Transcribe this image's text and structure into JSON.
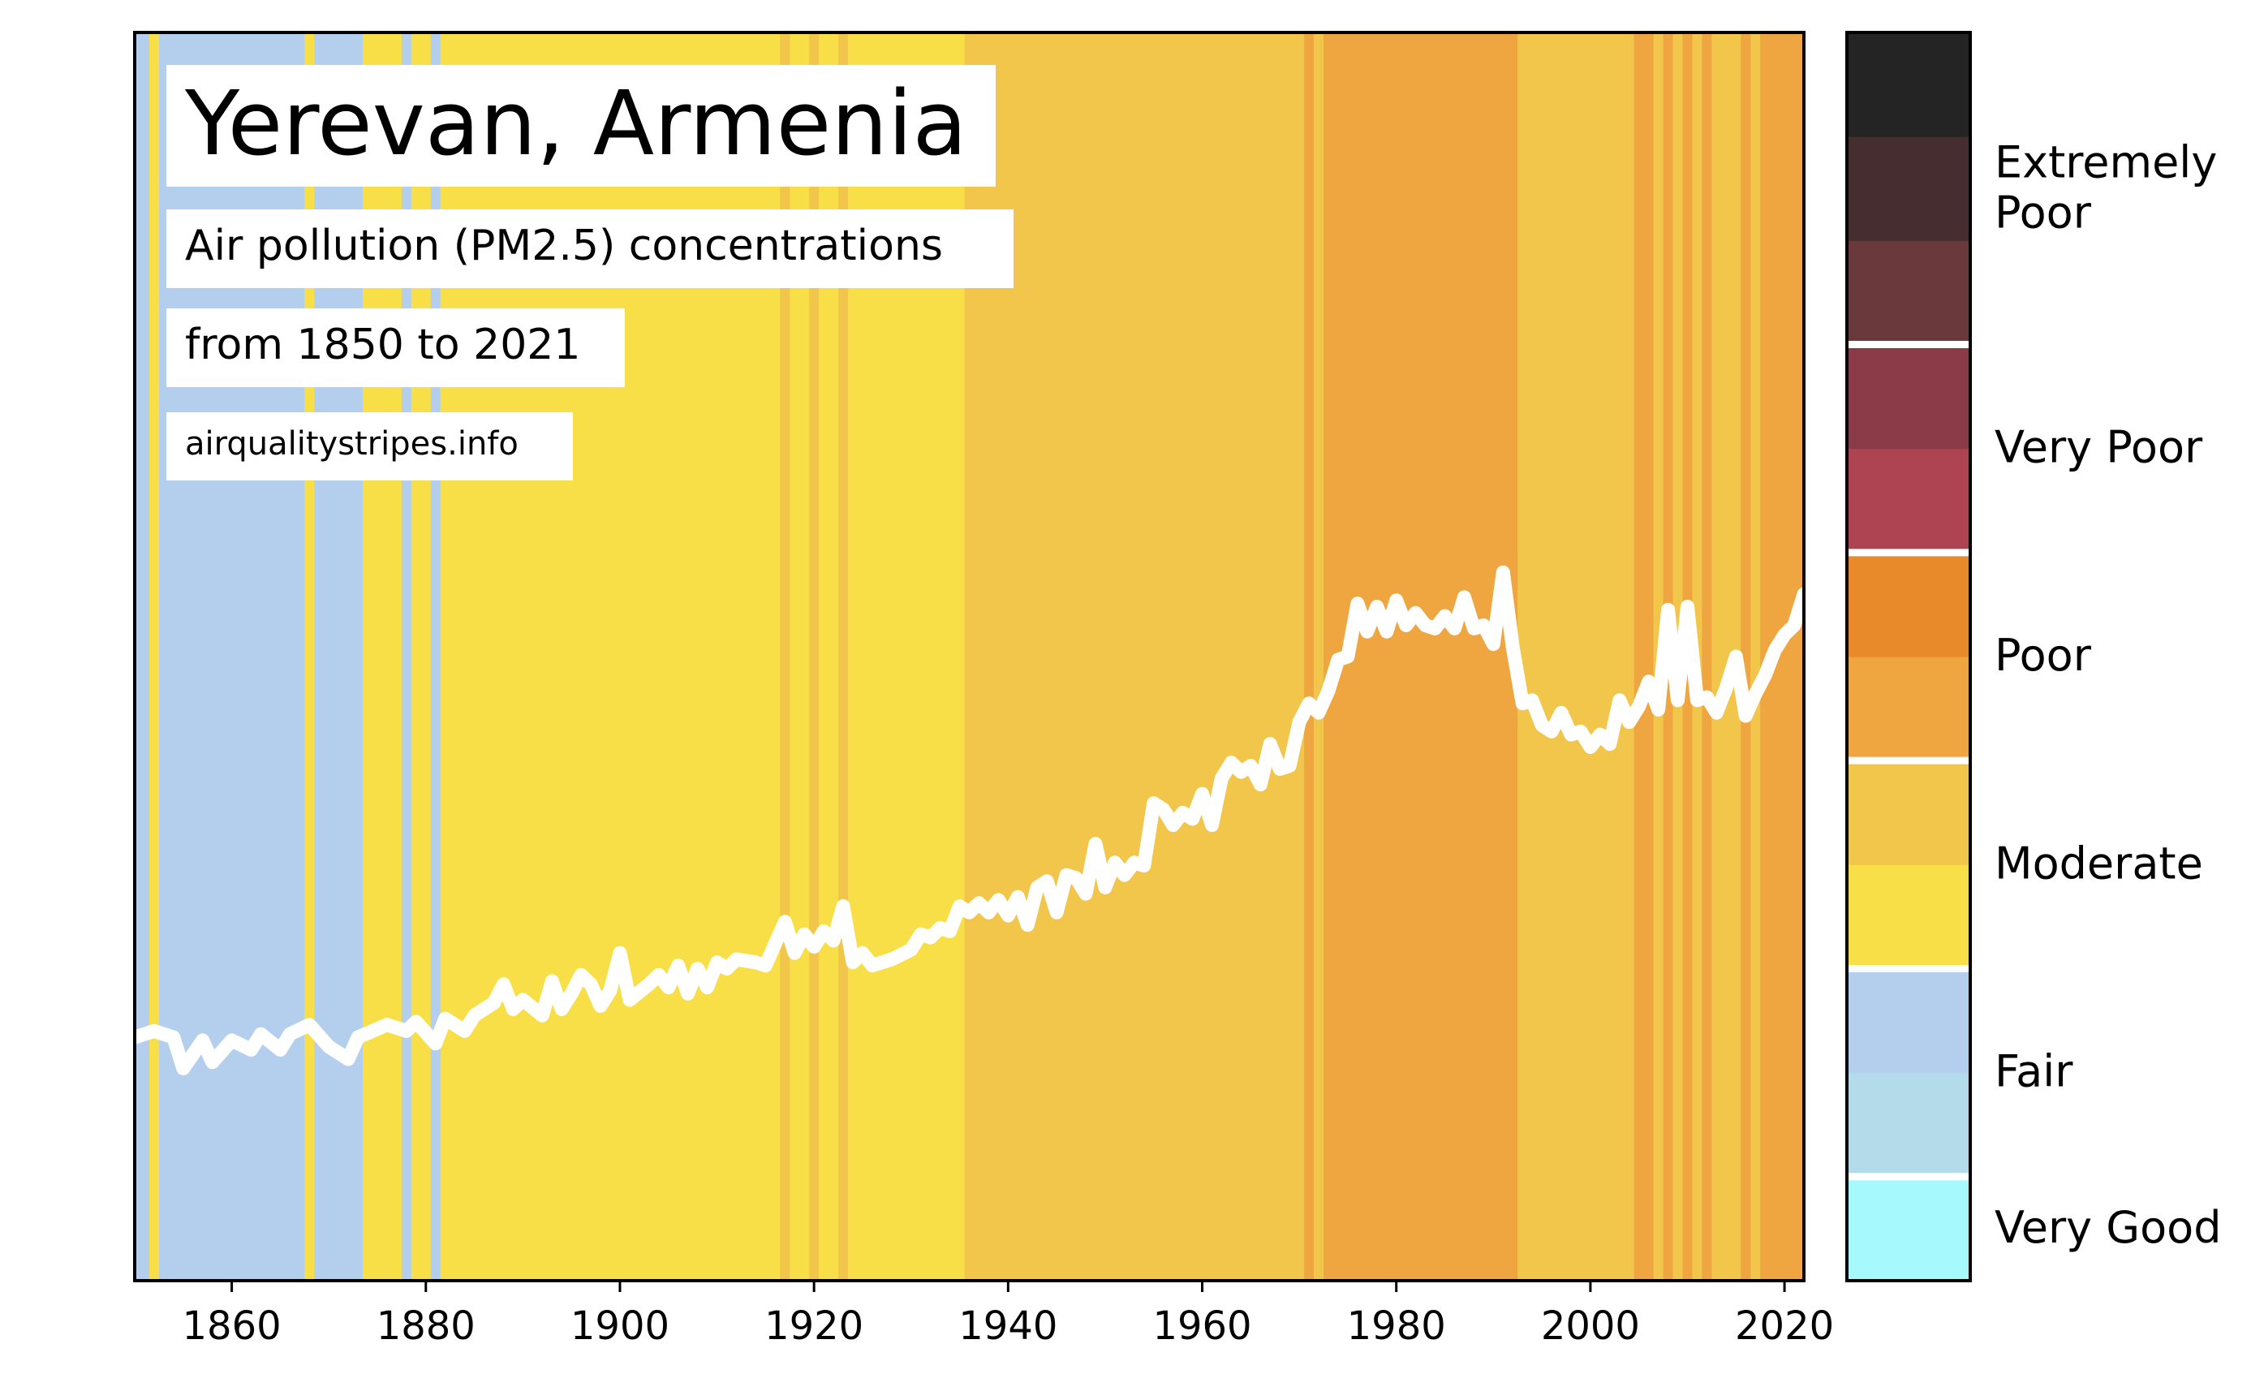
{
  "chart_data": {
    "type": "area",
    "title": "Yerevan, Armenia",
    "subtitle": "Air pollution (PM2.5) concentrations",
    "subtitle2": "from 1850 to 2021",
    "source": "airqualitystripes.info",
    "xlim": [
      1850,
      2022
    ],
    "xticks": [
      1860,
      1880,
      1900,
      1920,
      1940,
      1960,
      1980,
      2000,
      2020
    ],
    "grid": false,
    "colors": {
      "fair": "#b3cfed",
      "moderate_low": "#f8df48",
      "moderate_high": "#f1c64a",
      "poor_low": "#f0a640",
      "line": "#ffffff"
    },
    "stripes": [
      {
        "from": 1850,
        "to": 1851.5,
        "category": "fair"
      },
      {
        "from": 1851.5,
        "to": 1852.5,
        "category": "moderate_low"
      },
      {
        "from": 1852.5,
        "to": 1867.5,
        "category": "fair"
      },
      {
        "from": 1867.5,
        "to": 1868.5,
        "category": "moderate_low"
      },
      {
        "from": 1868.5,
        "to": 1873.5,
        "category": "fair"
      },
      {
        "from": 1873.5,
        "to": 1877.5,
        "category": "moderate_low"
      },
      {
        "from": 1877.5,
        "to": 1878.5,
        "category": "fair"
      },
      {
        "from": 1878.5,
        "to": 1880.5,
        "category": "moderate_low"
      },
      {
        "from": 1880.5,
        "to": 1881.5,
        "category": "fair"
      },
      {
        "from": 1881.5,
        "to": 1916.5,
        "category": "moderate_low"
      },
      {
        "from": 1916.5,
        "to": 1917.5,
        "category": "moderate_high"
      },
      {
        "from": 1917.5,
        "to": 1919.5,
        "category": "moderate_low"
      },
      {
        "from": 1919.5,
        "to": 1920.5,
        "category": "moderate_high"
      },
      {
        "from": 1920.5,
        "to": 1922.5,
        "category": "moderate_low"
      },
      {
        "from": 1922.5,
        "to": 1923.5,
        "category": "moderate_high"
      },
      {
        "from": 1923.5,
        "to": 1935.5,
        "category": "moderate_low"
      },
      {
        "from": 1935.5,
        "to": 1970.5,
        "category": "moderate_high"
      },
      {
        "from": 1970.5,
        "to": 1971.5,
        "category": "poor_low"
      },
      {
        "from": 1971.5,
        "to": 1972.5,
        "category": "moderate_high"
      },
      {
        "from": 1972.5,
        "to": 1992.5,
        "category": "poor_low"
      },
      {
        "from": 1992.5,
        "to": 2004.5,
        "category": "moderate_high"
      },
      {
        "from": 2004.5,
        "to": 2006.5,
        "category": "poor_low"
      },
      {
        "from": 2006.5,
        "to": 2007.5,
        "category": "moderate_high"
      },
      {
        "from": 2007.5,
        "to": 2008.5,
        "category": "poor_low"
      },
      {
        "from": 2008.5,
        "to": 2009.5,
        "category": "moderate_high"
      },
      {
        "from": 2009.5,
        "to": 2010.5,
        "category": "poor_low"
      },
      {
        "from": 2010.5,
        "to": 2011.5,
        "category": "moderate_high"
      },
      {
        "from": 2011.5,
        "to": 2012.5,
        "category": "poor_low"
      },
      {
        "from": 2012.5,
        "to": 2015.5,
        "category": "moderate_high"
      },
      {
        "from": 2015.5,
        "to": 2016.5,
        "category": "poor_low"
      },
      {
        "from": 2016.5,
        "to": 2017.5,
        "category": "moderate_high"
      },
      {
        "from": 2017.5,
        "to": 2022,
        "category": "poor_low"
      }
    ],
    "series": [
      {
        "values": [
          {
            "x": 1850,
            "y": 7.8
          },
          {
            "x": 1852,
            "y": 8.0
          },
          {
            "x": 1854,
            "y": 7.8
          },
          {
            "x": 1855,
            "y": 6.8
          },
          {
            "x": 1857,
            "y": 7.7
          },
          {
            "x": 1858,
            "y": 7.0
          },
          {
            "x": 1860,
            "y": 7.7
          },
          {
            "x": 1862,
            "y": 7.4
          },
          {
            "x": 1863,
            "y": 7.9
          },
          {
            "x": 1865,
            "y": 7.4
          },
          {
            "x": 1866,
            "y": 7.9
          },
          {
            "x": 1868,
            "y": 8.2
          },
          {
            "x": 1870,
            "y": 7.5
          },
          {
            "x": 1872,
            "y": 7.1
          },
          {
            "x": 1873,
            "y": 7.8
          },
          {
            "x": 1876,
            "y": 8.2
          },
          {
            "x": 1878,
            "y": 8.0
          },
          {
            "x": 1879,
            "y": 8.3
          },
          {
            "x": 1881,
            "y": 7.6
          },
          {
            "x": 1882,
            "y": 8.4
          },
          {
            "x": 1884,
            "y": 8.0
          },
          {
            "x": 1885,
            "y": 8.5
          },
          {
            "x": 1887,
            "y": 8.9
          },
          {
            "x": 1888,
            "y": 9.5
          },
          {
            "x": 1889,
            "y": 8.7
          },
          {
            "x": 1890,
            "y": 9.0
          },
          {
            "x": 1892,
            "y": 8.5
          },
          {
            "x": 1893,
            "y": 9.6
          },
          {
            "x": 1894,
            "y": 8.7
          },
          {
            "x": 1895,
            "y": 9.2
          },
          {
            "x": 1896,
            "y": 9.8
          },
          {
            "x": 1897,
            "y": 9.5
          },
          {
            "x": 1898,
            "y": 8.8
          },
          {
            "x": 1899,
            "y": 9.3
          },
          {
            "x": 1900,
            "y": 10.5
          },
          {
            "x": 1901,
            "y": 9.0
          },
          {
            "x": 1903,
            "y": 9.5
          },
          {
            "x": 1904,
            "y": 9.8
          },
          {
            "x": 1905,
            "y": 9.4
          },
          {
            "x": 1906,
            "y": 10.1
          },
          {
            "x": 1907,
            "y": 9.2
          },
          {
            "x": 1908,
            "y": 10.0
          },
          {
            "x": 1909,
            "y": 9.4
          },
          {
            "x": 1910,
            "y": 10.2
          },
          {
            "x": 1911,
            "y": 10.0
          },
          {
            "x": 1912,
            "y": 10.3
          },
          {
            "x": 1914,
            "y": 10.2
          },
          {
            "x": 1915,
            "y": 10.1
          },
          {
            "x": 1916,
            "y": 10.8
          },
          {
            "x": 1917,
            "y": 11.5
          },
          {
            "x": 1918,
            "y": 10.5
          },
          {
            "x": 1919,
            "y": 11.1
          },
          {
            "x": 1920,
            "y": 10.7
          },
          {
            "x": 1921,
            "y": 11.2
          },
          {
            "x": 1922,
            "y": 10.9
          },
          {
            "x": 1923,
            "y": 12.0
          },
          {
            "x": 1924,
            "y": 10.2
          },
          {
            "x": 1925,
            "y": 10.5
          },
          {
            "x": 1926,
            "y": 10.1
          },
          {
            "x": 1928,
            "y": 10.3
          },
          {
            "x": 1930,
            "y": 10.6
          },
          {
            "x": 1931,
            "y": 11.1
          },
          {
            "x": 1932,
            "y": 11.0
          },
          {
            "x": 1933,
            "y": 11.3
          },
          {
            "x": 1934,
            "y": 11.2
          },
          {
            "x": 1935,
            "y": 12.0
          },
          {
            "x": 1936,
            "y": 11.8
          },
          {
            "x": 1937,
            "y": 12.1
          },
          {
            "x": 1938,
            "y": 11.8
          },
          {
            "x": 1939,
            "y": 12.2
          },
          {
            "x": 1940,
            "y": 11.7
          },
          {
            "x": 1941,
            "y": 12.3
          },
          {
            "x": 1942,
            "y": 11.4
          },
          {
            "x": 1943,
            "y": 12.6
          },
          {
            "x": 1944,
            "y": 12.8
          },
          {
            "x": 1945,
            "y": 11.8
          },
          {
            "x": 1946,
            "y": 13.0
          },
          {
            "x": 1947,
            "y": 12.9
          },
          {
            "x": 1948,
            "y": 12.4
          },
          {
            "x": 1949,
            "y": 14.0
          },
          {
            "x": 1950,
            "y": 12.6
          },
          {
            "x": 1951,
            "y": 13.4
          },
          {
            "x": 1952,
            "y": 13.0
          },
          {
            "x": 1953,
            "y": 13.4
          },
          {
            "x": 1954,
            "y": 13.3
          },
          {
            "x": 1955,
            "y": 15.3
          },
          {
            "x": 1956,
            "y": 15.1
          },
          {
            "x": 1957,
            "y": 14.6
          },
          {
            "x": 1958,
            "y": 15.0
          },
          {
            "x": 1959,
            "y": 14.8
          },
          {
            "x": 1960,
            "y": 15.6
          },
          {
            "x": 1961,
            "y": 14.6
          },
          {
            "x": 1962,
            "y": 16.1
          },
          {
            "x": 1963,
            "y": 16.6
          },
          {
            "x": 1964,
            "y": 16.3
          },
          {
            "x": 1965,
            "y": 16.5
          },
          {
            "x": 1966,
            "y": 15.9
          },
          {
            "x": 1967,
            "y": 17.2
          },
          {
            "x": 1968,
            "y": 16.4
          },
          {
            "x": 1969,
            "y": 16.5
          },
          {
            "x": 1970,
            "y": 17.9
          },
          {
            "x": 1971,
            "y": 18.5
          },
          {
            "x": 1972,
            "y": 18.2
          },
          {
            "x": 1973,
            "y": 18.9
          },
          {
            "x": 1974,
            "y": 19.9
          },
          {
            "x": 1975,
            "y": 20.0
          },
          {
            "x": 1976,
            "y": 21.7
          },
          {
            "x": 1977,
            "y": 20.8
          },
          {
            "x": 1978,
            "y": 21.6
          },
          {
            "x": 1979,
            "y": 20.8
          },
          {
            "x": 1980,
            "y": 21.8
          },
          {
            "x": 1981,
            "y": 21.0
          },
          {
            "x": 1982,
            "y": 21.4
          },
          {
            "x": 1983,
            "y": 21.0
          },
          {
            "x": 1984,
            "y": 20.9
          },
          {
            "x": 1985,
            "y": 21.3
          },
          {
            "x": 1986,
            "y": 20.9
          },
          {
            "x": 1987,
            "y": 21.9
          },
          {
            "x": 1988,
            "y": 20.9
          },
          {
            "x": 1989,
            "y": 21.0
          },
          {
            "x": 1990,
            "y": 20.4
          },
          {
            "x": 1991,
            "y": 22.7
          },
          {
            "x": 1992,
            "y": 20.3
          },
          {
            "x": 1993,
            "y": 18.5
          },
          {
            "x": 1994,
            "y": 18.6
          },
          {
            "x": 1995,
            "y": 17.8
          },
          {
            "x": 1996,
            "y": 17.6
          },
          {
            "x": 1997,
            "y": 18.2
          },
          {
            "x": 1998,
            "y": 17.5
          },
          {
            "x": 1999,
            "y": 17.6
          },
          {
            "x": 2000,
            "y": 17.1
          },
          {
            "x": 2001,
            "y": 17.5
          },
          {
            "x": 2002,
            "y": 17.2
          },
          {
            "x": 2003,
            "y": 18.6
          },
          {
            "x": 2004,
            "y": 17.9
          },
          {
            "x": 2005,
            "y": 18.4
          },
          {
            "x": 2006,
            "y": 19.2
          },
          {
            "x": 2007,
            "y": 18.3
          },
          {
            "x": 2008,
            "y": 21.5
          },
          {
            "x": 2009,
            "y": 18.6
          },
          {
            "x": 2010,
            "y": 21.6
          },
          {
            "x": 2011,
            "y": 18.6
          },
          {
            "x": 2012,
            "y": 18.7
          },
          {
            "x": 2013,
            "y": 18.2
          },
          {
            "x": 2014,
            "y": 19.0
          },
          {
            "x": 2015,
            "y": 20.0
          },
          {
            "x": 2016,
            "y": 18.1
          },
          {
            "x": 2017,
            "y": 18.8
          },
          {
            "x": 2018,
            "y": 19.4
          },
          {
            "x": 2019,
            "y": 20.2
          },
          {
            "x": 2020,
            "y": 20.7
          },
          {
            "x": 2021,
            "y": 21.0
          },
          {
            "x": 2022,
            "y": 22.0
          }
        ]
      }
    ],
    "legend": {
      "placement": "right",
      "colors": [
        "#a6fafd",
        "#b3dbe9",
        "#b3cfed",
        "#f8df48",
        "#f1c64a",
        "#f0a640",
        "#e8892a",
        "#ae4452",
        "#8b3b47",
        "#69393c",
        "#462d30",
        "#242424"
      ],
      "labels": [
        {
          "text": "Very Good",
          "level": 0.5
        },
        {
          "text": "Fair",
          "level": 2
        },
        {
          "text": "Moderate",
          "level": 4
        },
        {
          "text": "Poor",
          "level": 6
        },
        {
          "text": "Very Poor",
          "level": 8
        },
        {
          "text": "Extremely\nPoor",
          "level": 10.5
        }
      ],
      "separators": [
        1,
        3,
        5,
        7,
        9
      ]
    }
  }
}
